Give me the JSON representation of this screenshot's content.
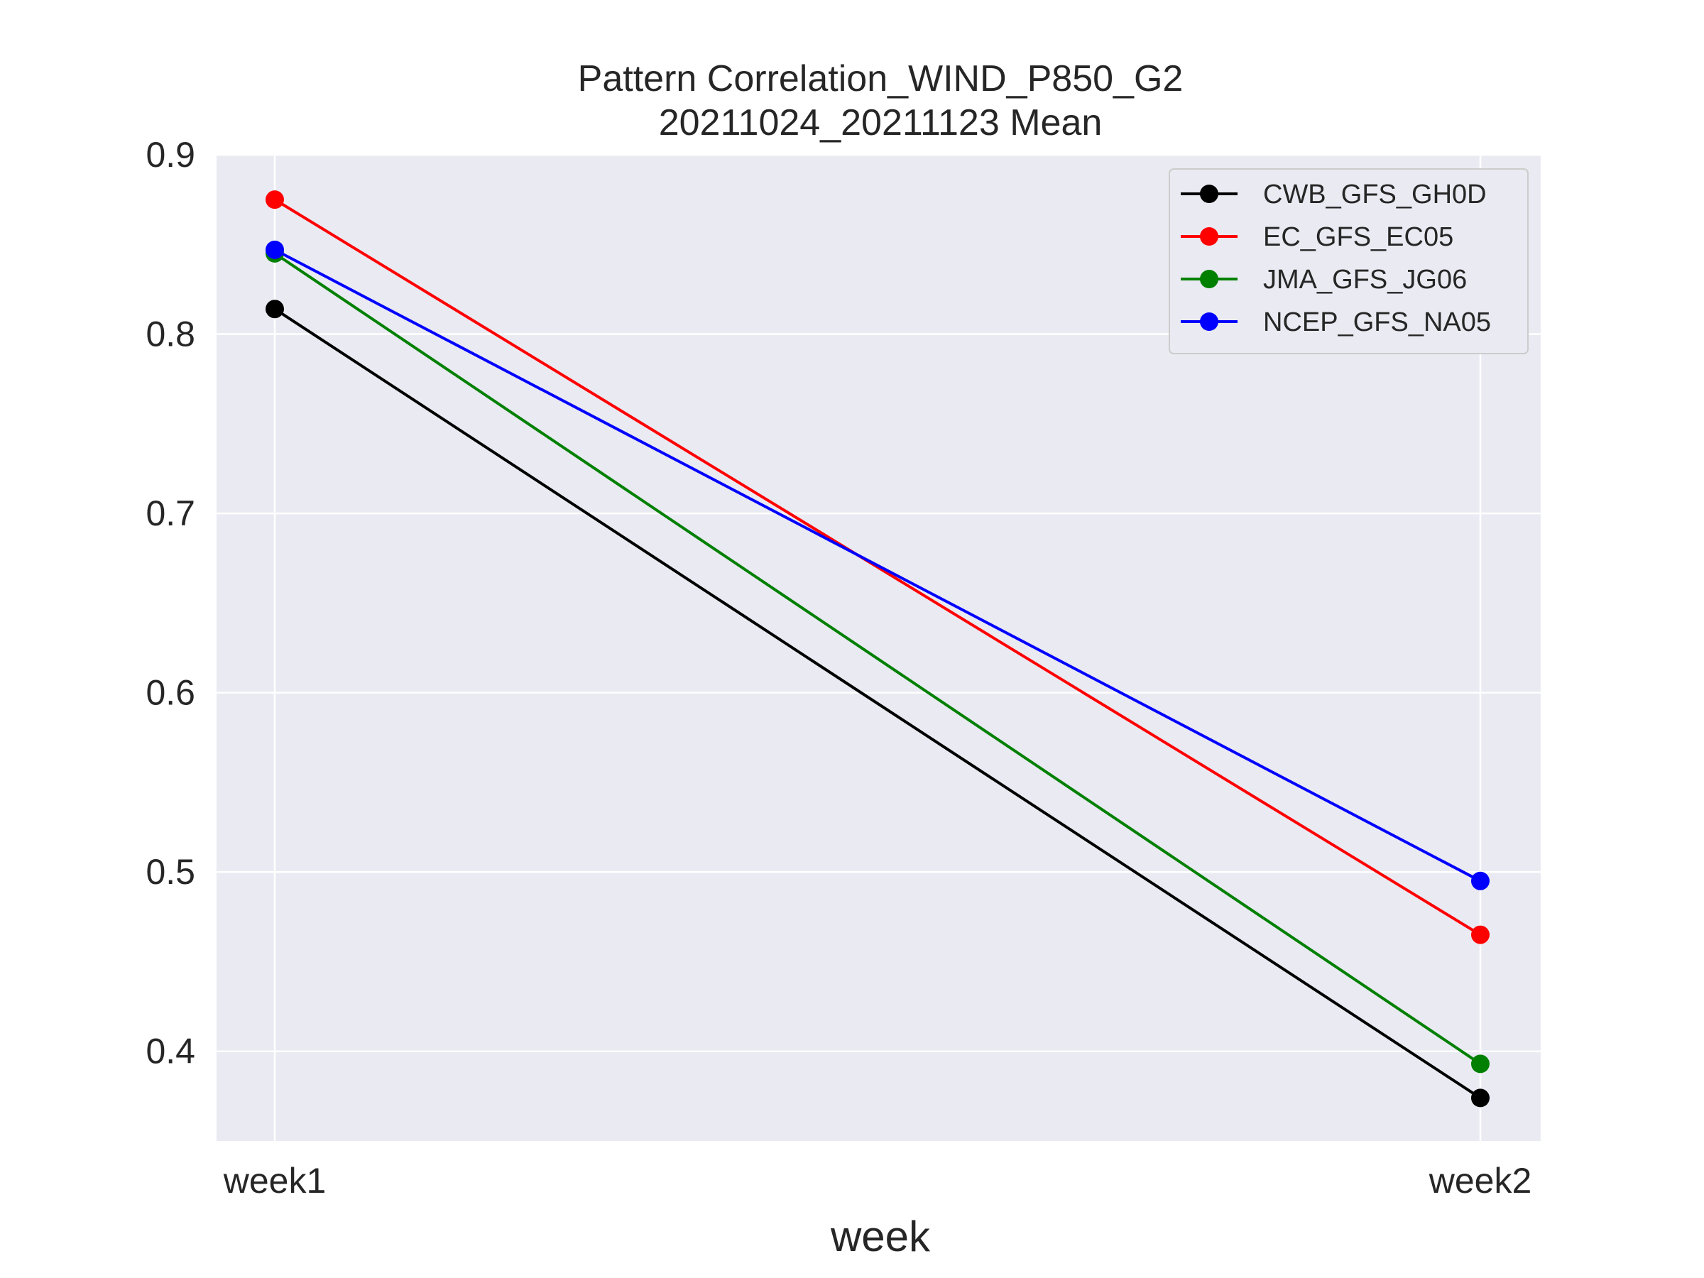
{
  "chart_data": {
    "type": "line",
    "title": "Pattern Correlation_WIND_P850_G2",
    "subtitle": "20211024_20211123 Mean",
    "xlabel": "week",
    "ylabel": "",
    "categories": [
      "week1",
      "week2"
    ],
    "ylim": [
      0.35,
      0.9
    ],
    "yticks": [
      0.4,
      0.5,
      0.6,
      0.7,
      0.8,
      0.9
    ],
    "ytick_labels": [
      "0.4",
      "0.5",
      "0.6",
      "0.7",
      "0.8",
      "0.9"
    ],
    "grid": true,
    "legend_position": "top-right",
    "background_color": "#eaeaf2",
    "series": [
      {
        "name": "CWB_GFS_GH0D",
        "color": "#000000",
        "values": [
          0.814,
          0.374
        ]
      },
      {
        "name": "EC_GFS_EC05",
        "color": "#ff0000",
        "values": [
          0.875,
          0.465
        ]
      },
      {
        "name": "JMA_GFS_JG06",
        "color": "#008000",
        "values": [
          0.845,
          0.393
        ]
      },
      {
        "name": "NCEP_GFS_NA05",
        "color": "#0000ff",
        "values": [
          0.847,
          0.495
        ]
      }
    ]
  }
}
